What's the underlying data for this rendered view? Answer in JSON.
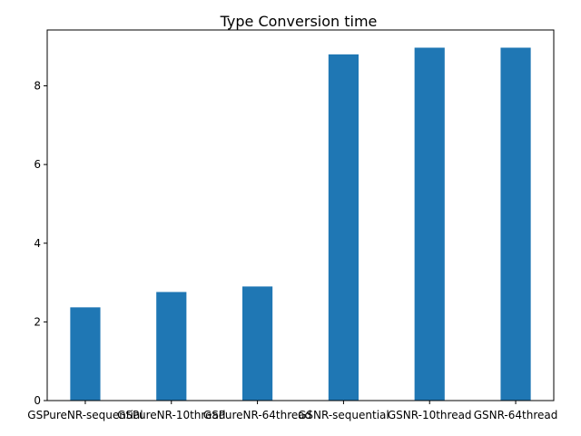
{
  "chart_data": {
    "type": "bar",
    "title": "Type Conversion time",
    "xlabel": "",
    "ylabel": "",
    "categories": [
      "GSPureNR-sequential",
      "GSPureNR-10thread",
      "GSPureNR-64thread",
      "GSNR-sequential",
      "GSNR-10thread",
      "GSNR-64thread"
    ],
    "values": [
      2.37,
      2.76,
      2.9,
      8.8,
      8.97,
      8.97
    ],
    "ylim": [
      0,
      9.42
    ],
    "yticks": [
      0,
      2,
      4,
      6,
      8
    ],
    "ytick_labels": [
      "0",
      "2",
      "4",
      "6",
      "8"
    ],
    "bar_color": "#1f77b4",
    "grid": false,
    "legend": "none"
  }
}
